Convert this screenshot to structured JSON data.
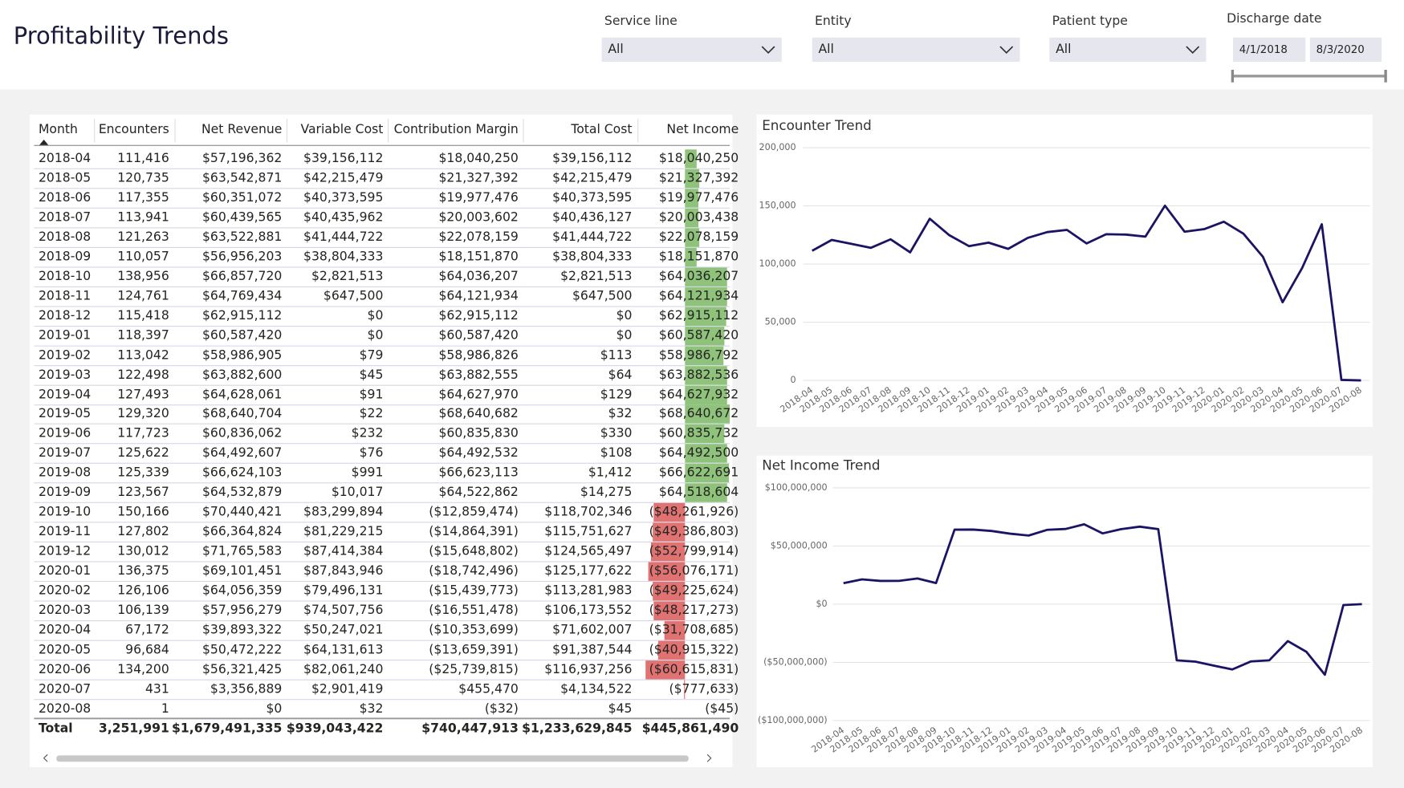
{
  "header": {
    "title": "Profitability Trends"
  },
  "filters": [
    {
      "label": "Service line",
      "value": "All"
    },
    {
      "label": "Entity",
      "value": "All"
    },
    {
      "label": "Patient type",
      "value": "All"
    }
  ],
  "discharge_date": {
    "label": "Discharge date",
    "start": "4/1/2018",
    "end": "8/3/2020"
  },
  "table": {
    "columns": [
      "Month",
      "Encounters",
      "Net Revenue",
      "Variable Cost",
      "Contribution Margin",
      "Total Cost",
      "Net Income"
    ],
    "rows": [
      [
        "2018-04",
        "111,416",
        "$57,196,362",
        "$39,156,112",
        "$18,040,250",
        "$39,156,112",
        "$18,040,250"
      ],
      [
        "2018-05",
        "120,735",
        "$63,542,871",
        "$42,215,479",
        "$21,327,392",
        "$42,215,479",
        "$21,327,392"
      ],
      [
        "2018-06",
        "117,355",
        "$60,351,072",
        "$40,373,595",
        "$19,977,476",
        "$40,373,595",
        "$19,977,476"
      ],
      [
        "2018-07",
        "113,941",
        "$60,439,565",
        "$40,435,962",
        "$20,003,602",
        "$40,436,127",
        "$20,003,438"
      ],
      [
        "2018-08",
        "121,263",
        "$63,522,881",
        "$41,444,722",
        "$22,078,159",
        "$41,444,722",
        "$22,078,159"
      ],
      [
        "2018-09",
        "110,057",
        "$56,956,203",
        "$38,804,333",
        "$18,151,870",
        "$38,804,333",
        "$18,151,870"
      ],
      [
        "2018-10",
        "138,956",
        "$66,857,720",
        "$2,821,513",
        "$64,036,207",
        "$2,821,513",
        "$64,036,207"
      ],
      [
        "2018-11",
        "124,761",
        "$64,769,434",
        "$647,500",
        "$64,121,934",
        "$647,500",
        "$64,121,934"
      ],
      [
        "2018-12",
        "115,418",
        "$62,915,112",
        "$0",
        "$62,915,112",
        "$0",
        "$62,915,112"
      ],
      [
        "2019-01",
        "118,397",
        "$60,587,420",
        "$0",
        "$60,587,420",
        "$0",
        "$60,587,420"
      ],
      [
        "2019-02",
        "113,042",
        "$58,986,905",
        "$79",
        "$58,986,826",
        "$113",
        "$58,986,792"
      ],
      [
        "2019-03",
        "122,498",
        "$63,882,600",
        "$45",
        "$63,882,555",
        "$64",
        "$63,882,536"
      ],
      [
        "2019-04",
        "127,493",
        "$64,628,061",
        "$91",
        "$64,627,970",
        "$129",
        "$64,627,932"
      ],
      [
        "2019-05",
        "129,320",
        "$68,640,704",
        "$22",
        "$68,640,682",
        "$32",
        "$68,640,672"
      ],
      [
        "2019-06",
        "117,723",
        "$60,836,062",
        "$232",
        "$60,835,830",
        "$330",
        "$60,835,732"
      ],
      [
        "2019-07",
        "125,622",
        "$64,492,607",
        "$76",
        "$64,492,532",
        "$108",
        "$64,492,500"
      ],
      [
        "2019-08",
        "125,339",
        "$66,624,103",
        "$991",
        "$66,623,113",
        "$1,412",
        "$66,622,691"
      ],
      [
        "2019-09",
        "123,567",
        "$64,532,879",
        "$10,017",
        "$64,522,862",
        "$14,275",
        "$64,518,604"
      ],
      [
        "2019-10",
        "150,166",
        "$70,440,421",
        "$83,299,894",
        "($12,859,474)",
        "$118,702,346",
        "($48,261,926)"
      ],
      [
        "2019-11",
        "127,802",
        "$66,364,824",
        "$81,229,215",
        "($14,864,391)",
        "$115,751,627",
        "($49,386,803)"
      ],
      [
        "2019-12",
        "130,012",
        "$71,765,583",
        "$87,414,384",
        "($15,648,802)",
        "$124,565,497",
        "($52,799,914)"
      ],
      [
        "2020-01",
        "136,375",
        "$69,101,451",
        "$87,843,946",
        "($18,742,496)",
        "$125,177,622",
        "($56,076,171)"
      ],
      [
        "2020-02",
        "126,106",
        "$64,056,359",
        "$79,496,131",
        "($15,439,773)",
        "$113,281,983",
        "($49,225,624)"
      ],
      [
        "2020-03",
        "106,139",
        "$57,956,279",
        "$74,507,756",
        "($16,551,478)",
        "$106,173,552",
        "($48,217,273)"
      ],
      [
        "2020-04",
        "67,172",
        "$39,893,322",
        "$50,247,021",
        "($10,353,699)",
        "$71,602,007",
        "($31,708,685)"
      ],
      [
        "2020-05",
        "96,684",
        "$50,472,222",
        "$64,131,613",
        "($13,659,391)",
        "$91,387,544",
        "($40,915,322)"
      ],
      [
        "2020-06",
        "134,200",
        "$56,321,425",
        "$82,061,240",
        "($25,739,815)",
        "$116,937,256",
        "($60,615,831)"
      ],
      [
        "2020-07",
        "431",
        "$3,356,889",
        "$2,901,419",
        "$455,470",
        "$4,134,522",
        "($777,633)"
      ],
      [
        "2020-08",
        "1",
        "$0",
        "$32",
        "($32)",
        "$45",
        "($45)"
      ]
    ],
    "total": [
      "Total",
      "3,251,991",
      "$1,679,491,335",
      "$939,043,422",
      "$740,447,913",
      "$1,233,629,845",
      "$445,861,490"
    ]
  },
  "chart_data": [
    {
      "type": "line",
      "title": "Encounter Trend",
      "color": "#1b1464",
      "grid": true,
      "categories": [
        "2018-04",
        "2018-05",
        "2018-06",
        "2018-07",
        "2018-08",
        "2018-09",
        "2018-10",
        "2018-11",
        "2018-12",
        "2019-01",
        "2019-02",
        "2019-03",
        "2019-04",
        "2019-05",
        "2019-06",
        "2019-07",
        "2019-08",
        "2019-09",
        "2019-10",
        "2019-11",
        "2019-12",
        "2020-01",
        "2020-02",
        "2020-03",
        "2020-04",
        "2020-05",
        "2020-06",
        "2020-07",
        "2020-08"
      ],
      "values": [
        111416,
        120735,
        117355,
        113941,
        121263,
        110057,
        138956,
        124761,
        115418,
        118397,
        113042,
        122498,
        127493,
        129320,
        117723,
        125622,
        125339,
        123567,
        150166,
        127802,
        130012,
        136375,
        126106,
        106139,
        67172,
        96684,
        134200,
        431,
        1
      ],
      "ylim": [
        0,
        200000
      ],
      "yticks": [
        0,
        {
          "value": 50000,
          "label": "50,000"
        },
        {
          "value": 100000,
          "label": "100,000"
        },
        {
          "value": 150000,
          "label": "150,000"
        },
        {
          "value": 200000,
          "label": "200,000"
        }
      ]
    },
    {
      "type": "line",
      "title": "Net Income Trend",
      "color": "#1b1464",
      "grid": true,
      "categories": [
        "2018-04",
        "2018-05",
        "2018-06",
        "2018-07",
        "2018-08",
        "2018-09",
        "2018-10",
        "2018-11",
        "2018-12",
        "2019-01",
        "2019-02",
        "2019-03",
        "2019-04",
        "2019-05",
        "2019-06",
        "2019-07",
        "2019-08",
        "2019-09",
        "2019-10",
        "2019-11",
        "2019-12",
        "2020-01",
        "2020-02",
        "2020-03",
        "2020-04",
        "2020-05",
        "2020-06",
        "2020-07",
        "2020-08"
      ],
      "values": [
        18040250,
        21327392,
        19977476,
        20003438,
        22078159,
        18151870,
        64036207,
        64121934,
        62915112,
        60587420,
        58986792,
        63882536,
        64627932,
        68640672,
        60835732,
        64492500,
        66622691,
        64518604,
        -48261926,
        -49386803,
        -52799914,
        -56076171,
        -49225624,
        -48217273,
        -31708685,
        -40915322,
        -60615831,
        -777633,
        -45
      ],
      "ylim": [
        -100000000,
        100000000
      ],
      "yticks": [
        {
          "value": -100000000,
          "label": "($100,000,000)"
        },
        {
          "value": -50000000,
          "label": "($50,000,000)"
        },
        {
          "value": 0,
          "label": "$0"
        },
        {
          "value": 50000000,
          "label": "$50,000,000"
        },
        {
          "value": 100000000,
          "label": "$100,000,000"
        }
      ]
    }
  ]
}
